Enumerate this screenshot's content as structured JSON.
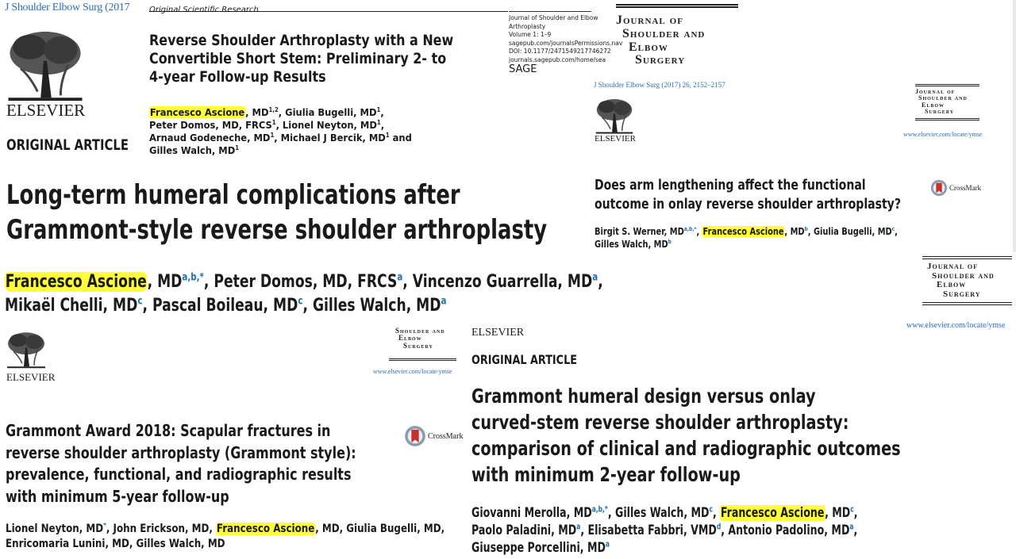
{
  "top_left": {
    "journal_ref": "J Shoulder Elbow Surg (2017"
  },
  "paper1": {
    "section": "Original Scientific Research",
    "publisher": "ELSEVIER",
    "article_type": "ORIGINAL ARTICLE",
    "title_lines": [
      "Reverse Shoulder Arthroplasty with a New",
      "Convertible Short Stem: Preliminary 2- to",
      "4-year Follow-up Results"
    ],
    "authors": {
      "a1": "Francesco Ascione",
      "a1_rest": ", MD",
      "a1_sup": "1,2",
      "a2": ", Giulia Bugelli, MD",
      "a2_sup": "1",
      "c1": ",",
      "a3": "Peter Domos, MD, FRCS",
      "a3_sup": "1",
      "a4": ", Lionel Neyton, MD",
      "a4_sup": "1",
      "c2": ",",
      "a5": "Arnaud Godeneche, MD",
      "a5_sup": "1",
      "a6": ", Michael J Bercik, MD",
      "a6_sup": "1",
      "a6_rest": " and",
      "a7": "Gilles Walch, MD",
      "a7_sup": "1"
    },
    "journal_info": [
      "Journal of Shoulder and Elbow",
      "Arthroplasty",
      "Volume 1: 1–9",
      "sagepub.com/journalsPermissions.nav",
      "DOI: 10.1177/2471549217746272",
      "journals.sagepub.com/home/sea"
    ],
    "sage_logo": "SAGE"
  },
  "jses_logo": {
    "l1": "Journal of",
    "l2": "Shoulder and",
    "l3": "Elbow",
    "l4": "Surgery"
  },
  "paper2": {
    "journal_ref": "J Shoulder Elbow Surg (2017) 26, 2152–2157",
    "publisher": "ELSEVIER",
    "url": "www.elsevier.com/locate/ymse",
    "crossmark": "CrossMark",
    "title_lines": [
      "Does arm lengthening affect the functional",
      "outcome in onlay reverse shoulder arthroplasty?"
    ],
    "authors": {
      "a1": "Birgit S. Werner, MD",
      "a1_sup": "a,b,*",
      "a2": "Francesco Ascione",
      "a2_rest": ", MD",
      "a2_sup": "b",
      "a3": ", Giulia Bugelli, MD",
      "a3_sup": "c",
      "c": ",",
      "a4": "Gilles Walch, MD",
      "a4_sup": "b"
    }
  },
  "paper3": {
    "title_lines": [
      "Long-term humeral complications after",
      "Grammont-style reverse shoulder arthroplasty"
    ],
    "authors": {
      "a1": "Francesco Ascione",
      "a1_rest": ", MD",
      "a1_sup": "a,b,*",
      "a2": ", Peter Domos, MD, FRCS",
      "a2_sup": "a",
      "a3": ", Vincenzo Guarrella, MD",
      "a3_sup": "a",
      "c": ",",
      "a4": "Mikaël Chelli, MD",
      "a4_sup": "c",
      "a5": ", Pascal Boileau, MD",
      "a5_sup": "c",
      "a6": ", Gilles Walch, MD",
      "a6_sup": "a"
    },
    "url": "www.elsevier.com/locate/ymse"
  },
  "paper4": {
    "publisher": "ELSEVIER",
    "url": "www.elsevier.com/locate/ymse",
    "crossmark": "CrossMark",
    "title_lines": [
      "Grammont Award 2018: Scapular fractures in",
      "reverse shoulder arthroplasty (Grammont style):",
      "prevalence, functional, and radiographic results",
      "with minimum 5-year follow-up"
    ],
    "authors": {
      "a1": "Lionel Neyton, MD",
      "a1_sup": "*",
      "a2": ", John Erickson, MD, ",
      "a3": "Francesco Ascione",
      "a4": ", MD, Giulia Bugelli, MD,",
      "a5": "Enricomaria Lunini, MD, Gilles Walch, MD"
    }
  },
  "paper5": {
    "publisher": "ELSEVIER",
    "article_type": "ORIGINAL ARTICLE",
    "title_lines": [
      "Grammont humeral design versus onlay",
      "curved-stem reverse shoulder arthroplasty:",
      "comparison of clinical and radiographic outcomes",
      "with minimum 2-year follow-up"
    ],
    "authors": {
      "a1": "Giovanni Merolla, MD",
      "a1_sup": "a,b,*",
      "a2": ", Gilles Walch, MD",
      "a2_sup": "c",
      "c1": ", ",
      "a3": "Francesco Ascione",
      "a3_rest": ", MD",
      "a3_sup": "c",
      "c2": ",",
      "a4": "Paolo Paladini, MD",
      "a4_sup": "a",
      "a5": ", Elisabetta Fabbri, VMD",
      "a5_sup": "d",
      "a6": ", Antonio Padolino, MD",
      "a6_sup": "a",
      "c3": ",",
      "a7": "Giuseppe Porcellini, MD",
      "a7_sup": "a"
    }
  },
  "colors": {
    "highlight": "#ffff3a",
    "link_blue": "#2a6ebb",
    "text": "#1a1a1a"
  }
}
